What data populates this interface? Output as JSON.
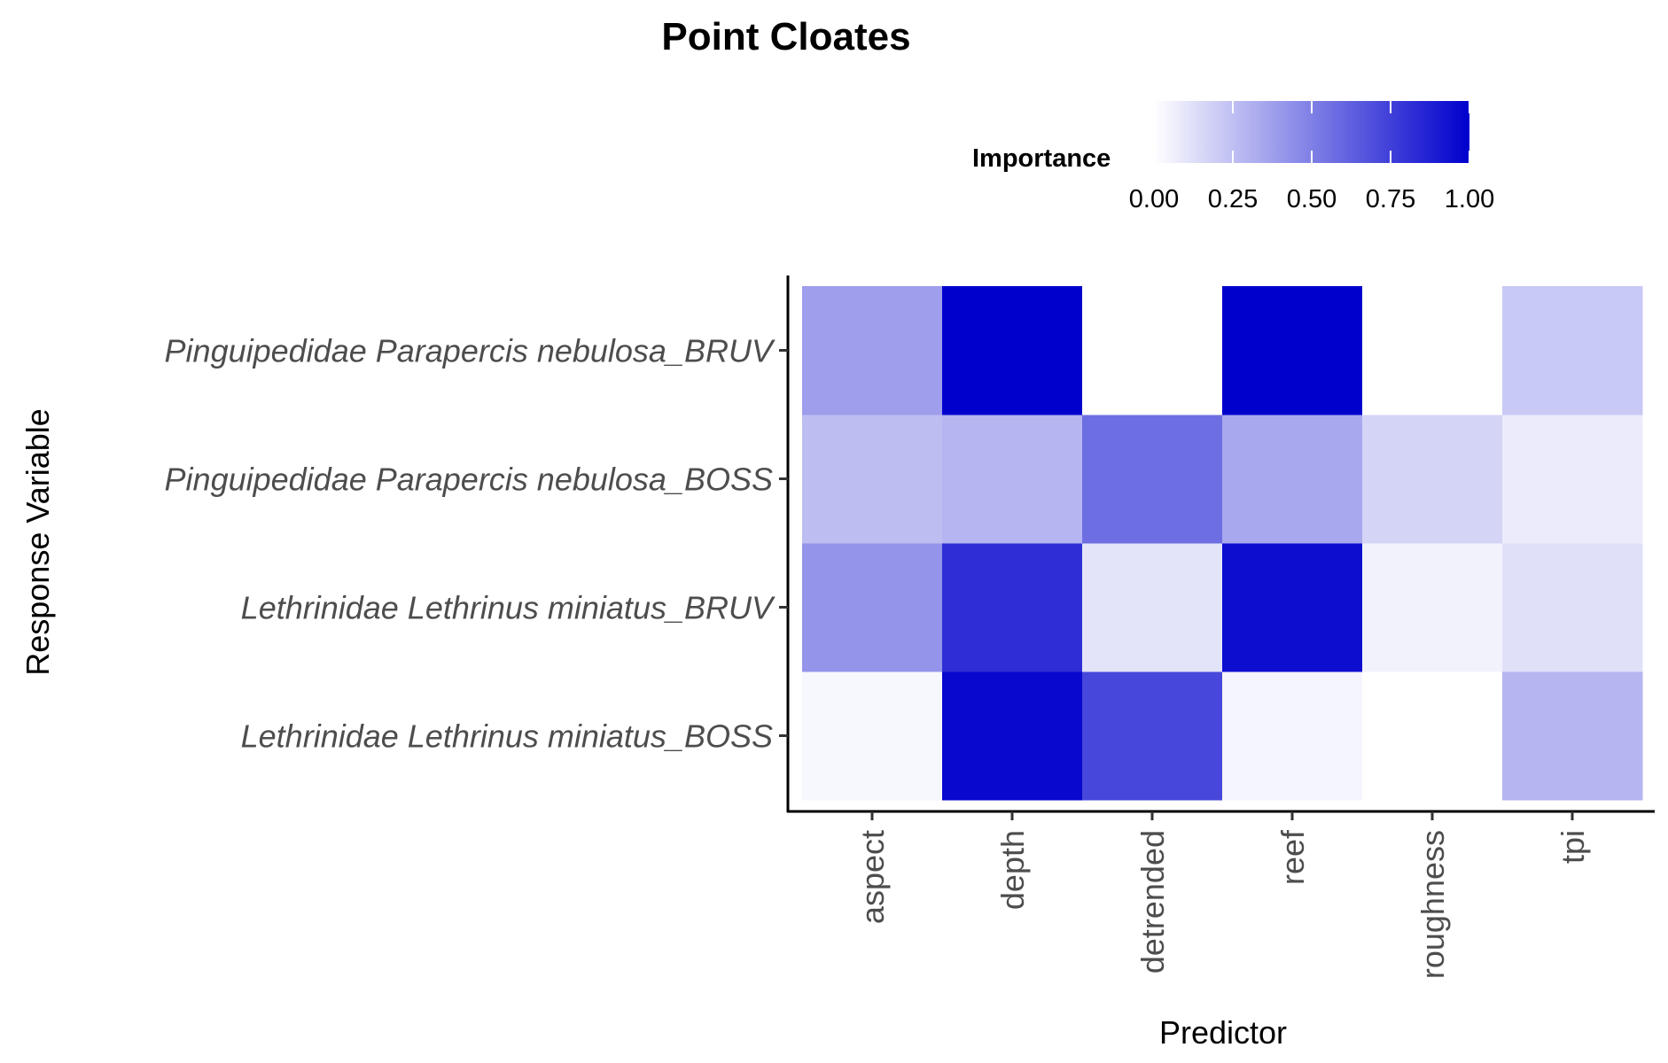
{
  "chart_data": {
    "type": "heatmap",
    "title": "Point Cloates",
    "xlabel": "Predictor",
    "ylabel": "Response Variable",
    "x_categories": [
      "aspect",
      "depth",
      "detrended",
      "reef",
      "roughness",
      "tpi"
    ],
    "y_categories": [
      "Lethrinidae Lethrinus miniatus_BOSS",
      "Lethrinidae Lethrinus miniatus_BRUV",
      "Pinguipedidae Parapercis nebulosa_BOSS",
      "Pinguipedidae Parapercis nebulosa_BRUV"
    ],
    "values": [
      [
        0.03,
        0.97,
        0.72,
        0.04,
        0.0,
        0.29
      ],
      [
        0.42,
        0.82,
        0.11,
        0.95,
        0.05,
        0.12
      ],
      [
        0.26,
        0.29,
        0.57,
        0.34,
        0.17,
        0.08
      ],
      [
        0.38,
        1.0,
        0.0,
        1.0,
        0.0,
        0.21
      ]
    ],
    "legend": {
      "title": "Importance",
      "position": "top",
      "ticks": [
        "0.00",
        "0.25",
        "0.50",
        "0.75",
        "1.00"
      ],
      "range": [
        0,
        1
      ],
      "low_color": "#ffffff",
      "high_color": "#0000cd"
    },
    "grid": false
  }
}
